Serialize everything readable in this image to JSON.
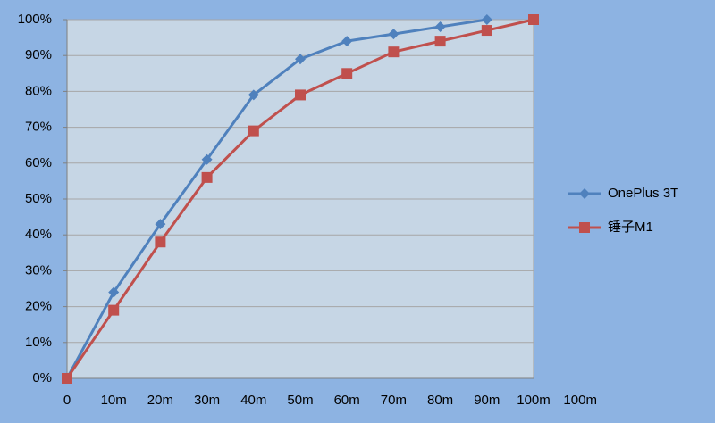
{
  "chart_data": {
    "type": "line",
    "categories": [
      "0",
      "10m",
      "20m",
      "30m",
      "40m",
      "50m",
      "60m",
      "70m",
      "80m",
      "90m",
      "100m",
      "100m"
    ],
    "series": [
      {
        "name": "OnePlus 3T",
        "color": "#4f81bd",
        "marker": "diamond",
        "values": [
          0,
          24,
          43,
          61,
          79,
          89,
          94,
          96,
          98,
          100,
          null,
          null
        ]
      },
      {
        "name": "锤子M1",
        "color": "#c0504d",
        "marker": "square",
        "values": [
          0,
          19,
          38,
          56,
          69,
          79,
          85,
          91,
          94,
          97,
          100,
          null
        ]
      }
    ],
    "ylim": [
      0,
      100
    ],
    "yticks": [
      {
        "value": 0,
        "label": "0%"
      },
      {
        "value": 10,
        "label": "10%"
      },
      {
        "value": 20,
        "label": "20%"
      },
      {
        "value": 30,
        "label": "30%"
      },
      {
        "value": 40,
        "label": "40%"
      },
      {
        "value": 50,
        "label": "50%"
      },
      {
        "value": 60,
        "label": "60%"
      },
      {
        "value": 70,
        "label": "70%"
      },
      {
        "value": 80,
        "label": "80%"
      },
      {
        "value": 90,
        "label": "90%"
      },
      {
        "value": 100,
        "label": "100%"
      }
    ],
    "grid": true,
    "legend": "right"
  }
}
